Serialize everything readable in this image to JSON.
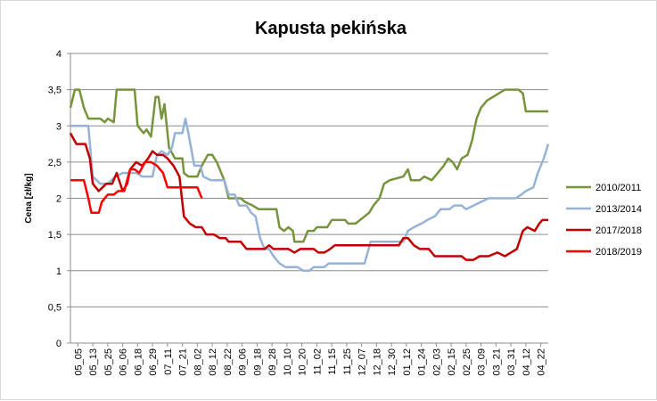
{
  "chart_data": {
    "type": "line",
    "title": "Kapusta pekińska",
    "ylabel": "Cena [zł/kg]",
    "xlabel": "",
    "ylim": [
      0,
      4
    ],
    "yticks": [
      "0",
      "0,5",
      "1",
      "1,5",
      "2",
      "2,5",
      "3",
      "3,5",
      "4"
    ],
    "grid": "horizontal",
    "legend_position": "right",
    "categories": [
      "05_05",
      "05_13",
      "05_25",
      "06_06",
      "06_18",
      "06_29",
      "07_11",
      "07_21",
      "08_02",
      "08_12",
      "08_22",
      "09_06",
      "09_18",
      "09_28",
      "10_10",
      "10_20",
      "11_02",
      "11_15",
      "11_25",
      "12_07",
      "12_18",
      "12_30",
      "01_12",
      "01_24",
      "02_03",
      "02_15",
      "02_25",
      "03_09",
      "03_21",
      "03_31",
      "04_12",
      "04_22"
    ],
    "x_range": [
      0,
      32
    ],
    "series": [
      {
        "name": "2010/2011",
        "color": "#77933c",
        "points": [
          [
            0.0,
            3.25
          ],
          [
            0.3,
            3.5
          ],
          [
            0.6,
            3.5
          ],
          [
            0.9,
            3.25
          ],
          [
            1.2,
            3.1
          ],
          [
            2.0,
            3.1
          ],
          [
            2.3,
            3.05
          ],
          [
            2.5,
            3.1
          ],
          [
            2.9,
            3.05
          ],
          [
            3.1,
            3.5
          ],
          [
            4.0,
            3.5
          ],
          [
            4.3,
            3.5
          ],
          [
            4.5,
            3.0
          ],
          [
            4.9,
            2.9
          ],
          [
            5.1,
            2.95
          ],
          [
            5.4,
            2.85
          ],
          [
            5.7,
            3.4
          ],
          [
            5.9,
            3.4
          ],
          [
            6.1,
            3.1
          ],
          [
            6.3,
            3.3
          ],
          [
            6.6,
            2.7
          ],
          [
            7.0,
            2.55
          ],
          [
            7.5,
            2.55
          ],
          [
            7.6,
            2.35
          ],
          [
            7.9,
            2.3
          ],
          [
            8.5,
            2.3
          ],
          [
            8.8,
            2.45
          ],
          [
            9.2,
            2.6
          ],
          [
            9.5,
            2.6
          ],
          [
            9.8,
            2.5
          ],
          [
            10.3,
            2.25
          ],
          [
            10.6,
            2.0
          ],
          [
            11.4,
            2.0
          ],
          [
            11.7,
            1.95
          ],
          [
            12.2,
            1.9
          ],
          [
            12.6,
            1.85
          ],
          [
            13.8,
            1.85
          ],
          [
            14.0,
            1.6
          ],
          [
            14.3,
            1.55
          ],
          [
            14.6,
            1.6
          ],
          [
            14.9,
            1.55
          ],
          [
            15.0,
            1.4
          ],
          [
            15.6,
            1.4
          ],
          [
            15.9,
            1.55
          ],
          [
            16.3,
            1.55
          ],
          [
            16.5,
            1.6
          ],
          [
            17.2,
            1.6
          ],
          [
            17.5,
            1.7
          ],
          [
            18.4,
            1.7
          ],
          [
            18.6,
            1.65
          ],
          [
            19.1,
            1.65
          ],
          [
            19.4,
            1.7
          ],
          [
            19.7,
            1.75
          ],
          [
            20.0,
            1.8
          ],
          [
            20.3,
            1.9
          ],
          [
            20.7,
            2.0
          ],
          [
            21.0,
            2.2
          ],
          [
            21.4,
            2.25
          ],
          [
            22.3,
            2.3
          ],
          [
            22.6,
            2.4
          ],
          [
            22.8,
            2.25
          ],
          [
            23.4,
            2.25
          ],
          [
            23.7,
            2.3
          ],
          [
            24.2,
            2.25
          ],
          [
            24.6,
            2.35
          ],
          [
            25.0,
            2.45
          ],
          [
            25.3,
            2.55
          ],
          [
            25.6,
            2.5
          ],
          [
            25.9,
            2.4
          ],
          [
            26.2,
            2.55
          ],
          [
            26.6,
            2.6
          ],
          [
            26.9,
            2.8
          ],
          [
            27.2,
            3.1
          ],
          [
            27.5,
            3.25
          ],
          [
            27.9,
            3.35
          ],
          [
            28.3,
            3.4
          ],
          [
            28.7,
            3.45
          ],
          [
            29.1,
            3.5
          ],
          [
            30.0,
            3.5
          ],
          [
            30.3,
            3.45
          ],
          [
            30.5,
            3.2
          ],
          [
            32.0,
            3.2
          ]
        ]
      },
      {
        "name": "2013/2014",
        "color": "#95b3d7",
        "points": [
          [
            0.0,
            3.0
          ],
          [
            1.2,
            3.0
          ],
          [
            1.5,
            2.3
          ],
          [
            2.0,
            2.2
          ],
          [
            2.5,
            2.2
          ],
          [
            3.0,
            2.3
          ],
          [
            3.5,
            2.35
          ],
          [
            4.4,
            2.35
          ],
          [
            4.8,
            2.3
          ],
          [
            5.5,
            2.3
          ],
          [
            5.8,
            2.6
          ],
          [
            6.1,
            2.65
          ],
          [
            6.5,
            2.6
          ],
          [
            6.8,
            2.7
          ],
          [
            7.0,
            2.9
          ],
          [
            7.5,
            2.9
          ],
          [
            7.7,
            3.1
          ],
          [
            7.9,
            2.9
          ],
          [
            8.3,
            2.45
          ],
          [
            8.7,
            2.45
          ],
          [
            8.9,
            2.3
          ],
          [
            9.4,
            2.25
          ],
          [
            9.8,
            2.25
          ],
          [
            10.3,
            2.25
          ],
          [
            10.6,
            2.05
          ],
          [
            11.0,
            2.05
          ],
          [
            11.3,
            1.9
          ],
          [
            11.8,
            1.9
          ],
          [
            12.1,
            1.8
          ],
          [
            12.4,
            1.75
          ],
          [
            12.7,
            1.45
          ],
          [
            13.0,
            1.3
          ],
          [
            13.3,
            1.3
          ],
          [
            13.6,
            1.2
          ],
          [
            14.0,
            1.1
          ],
          [
            14.4,
            1.05
          ],
          [
            14.8,
            1.05
          ],
          [
            15.2,
            1.05
          ],
          [
            15.6,
            1.0
          ],
          [
            16.0,
            1.0
          ],
          [
            16.3,
            1.05
          ],
          [
            17.0,
            1.05
          ],
          [
            17.3,
            1.1
          ],
          [
            18.5,
            1.1
          ],
          [
            19.0,
            1.1
          ],
          [
            19.7,
            1.1
          ],
          [
            20.1,
            1.4
          ],
          [
            22.3,
            1.4
          ],
          [
            22.6,
            1.55
          ],
          [
            23.0,
            1.6
          ],
          [
            23.5,
            1.65
          ],
          [
            23.9,
            1.7
          ],
          [
            24.4,
            1.75
          ],
          [
            24.8,
            1.85
          ],
          [
            25.4,
            1.85
          ],
          [
            25.7,
            1.9
          ],
          [
            26.2,
            1.9
          ],
          [
            26.5,
            1.85
          ],
          [
            27.0,
            1.9
          ],
          [
            27.5,
            1.95
          ],
          [
            28.0,
            2.0
          ],
          [
            29.8,
            2.0
          ],
          [
            30.2,
            2.05
          ],
          [
            30.5,
            2.1
          ],
          [
            31.0,
            2.15
          ],
          [
            31.3,
            2.35
          ],
          [
            31.7,
            2.55
          ],
          [
            32.0,
            2.75
          ]
        ]
      },
      {
        "name": "2017/2018",
        "color": "#c00000",
        "points": [
          [
            0.0,
            2.9
          ],
          [
            0.4,
            2.75
          ],
          [
            1.0,
            2.75
          ],
          [
            1.3,
            2.55
          ],
          [
            1.5,
            2.2
          ],
          [
            1.9,
            2.1
          ],
          [
            2.4,
            2.2
          ],
          [
            2.8,
            2.2
          ],
          [
            3.1,
            2.35
          ],
          [
            3.5,
            2.1
          ],
          [
            3.8,
            2.2
          ],
          [
            4.0,
            2.4
          ],
          [
            4.4,
            2.5
          ],
          [
            4.8,
            2.45
          ],
          [
            5.2,
            2.55
          ],
          [
            5.5,
            2.65
          ],
          [
            5.8,
            2.6
          ],
          [
            6.2,
            2.6
          ],
          [
            6.5,
            2.55
          ],
          [
            6.9,
            2.45
          ],
          [
            7.3,
            2.3
          ],
          [
            7.6,
            1.75
          ],
          [
            8.0,
            1.65
          ],
          [
            8.4,
            1.6
          ],
          [
            8.8,
            1.6
          ],
          [
            9.1,
            1.5
          ],
          [
            9.6,
            1.5
          ],
          [
            10.0,
            1.45
          ],
          [
            10.4,
            1.45
          ],
          [
            10.6,
            1.4
          ],
          [
            11.4,
            1.4
          ],
          [
            11.8,
            1.3
          ],
          [
            13.0,
            1.3
          ],
          [
            13.3,
            1.35
          ],
          [
            13.6,
            1.3
          ],
          [
            14.2,
            1.3
          ],
          [
            14.6,
            1.3
          ],
          [
            15.0,
            1.25
          ],
          [
            15.4,
            1.3
          ],
          [
            16.3,
            1.3
          ],
          [
            16.6,
            1.25
          ],
          [
            17.0,
            1.25
          ],
          [
            17.4,
            1.3
          ],
          [
            17.7,
            1.35
          ],
          [
            18.2,
            1.35
          ],
          [
            18.6,
            1.35
          ],
          [
            19.0,
            1.35
          ],
          [
            19.4,
            1.35
          ],
          [
            19.7,
            1.35
          ],
          [
            20.1,
            1.35
          ],
          [
            20.4,
            1.35
          ],
          [
            21.3,
            1.35
          ],
          [
            21.6,
            1.35
          ],
          [
            22.0,
            1.35
          ],
          [
            22.3,
            1.45
          ],
          [
            22.6,
            1.45
          ],
          [
            23.0,
            1.35
          ],
          [
            23.4,
            1.3
          ],
          [
            24.0,
            1.3
          ],
          [
            24.4,
            1.2
          ],
          [
            26.2,
            1.2
          ],
          [
            26.5,
            1.15
          ],
          [
            27.0,
            1.15
          ],
          [
            27.4,
            1.2
          ],
          [
            28.0,
            1.2
          ],
          [
            28.6,
            1.25
          ],
          [
            29.1,
            1.2
          ],
          [
            29.5,
            1.25
          ],
          [
            29.9,
            1.3
          ],
          [
            30.3,
            1.55
          ],
          [
            30.6,
            1.6
          ],
          [
            31.1,
            1.55
          ],
          [
            31.4,
            1.65
          ],
          [
            31.6,
            1.7
          ],
          [
            32.0,
            1.7
          ]
        ]
      },
      {
        "name": "2018/2019",
        "color": "#ff0000",
        "points": [
          [
            0.0,
            2.25
          ],
          [
            0.9,
            2.25
          ],
          [
            1.2,
            2.0
          ],
          [
            1.4,
            1.8
          ],
          [
            1.9,
            1.8
          ],
          [
            2.1,
            1.95
          ],
          [
            2.5,
            2.05
          ],
          [
            2.9,
            2.05
          ],
          [
            3.2,
            2.1
          ],
          [
            3.6,
            2.1
          ],
          [
            4.0,
            2.4
          ],
          [
            4.3,
            2.4
          ],
          [
            4.6,
            2.35
          ],
          [
            5.0,
            2.5
          ],
          [
            5.4,
            2.5
          ],
          [
            5.8,
            2.45
          ],
          [
            6.2,
            2.35
          ],
          [
            6.5,
            2.15
          ],
          [
            7.0,
            2.15
          ],
          [
            8.0,
            2.15
          ],
          [
            8.5,
            2.15
          ],
          [
            8.8,
            2.0
          ]
        ]
      }
    ]
  }
}
